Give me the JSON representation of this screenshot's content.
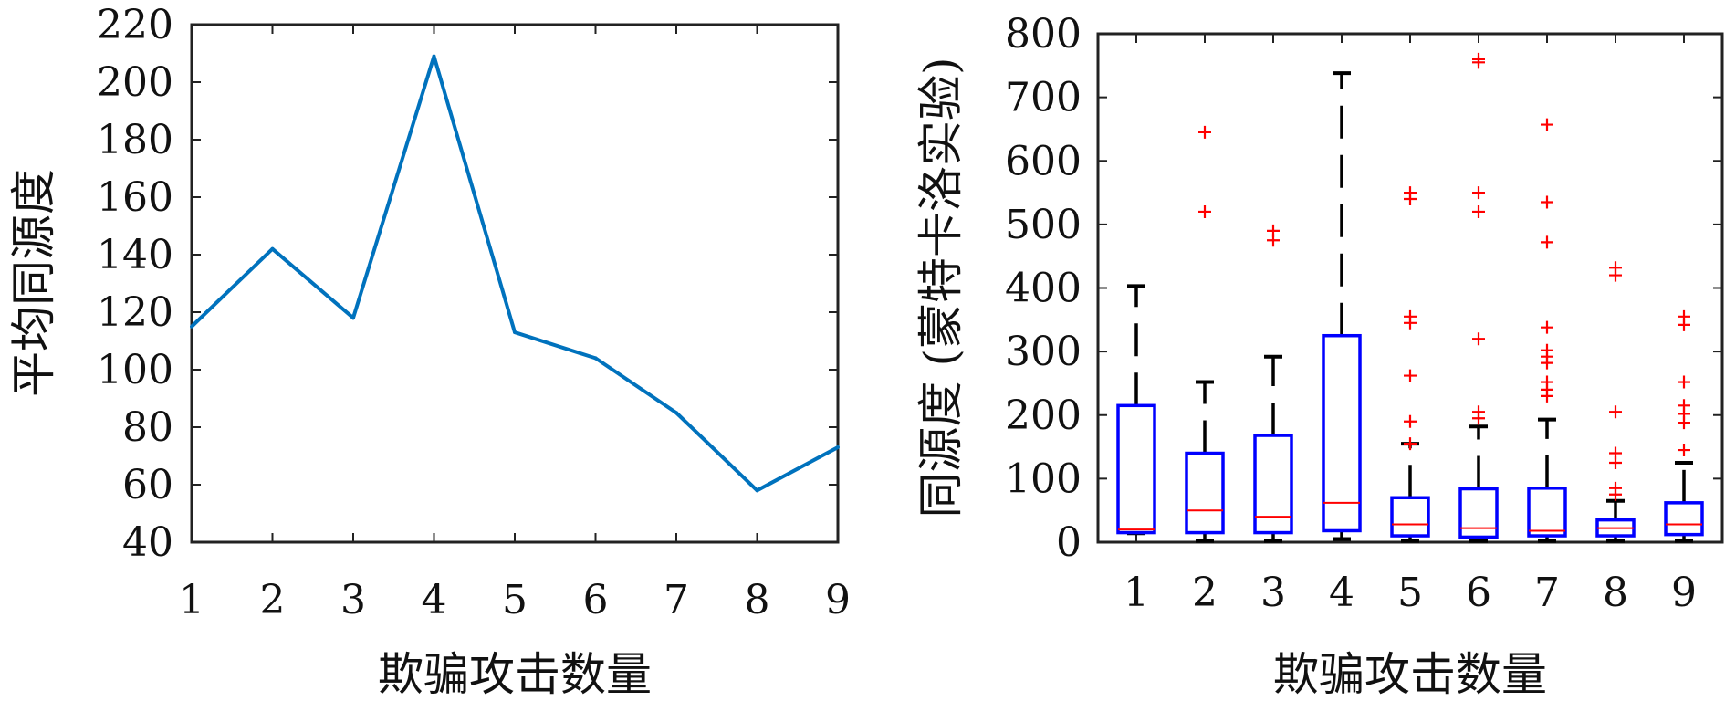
{
  "chart_data": [
    {
      "type": "line",
      "xlabel": "欺骗攻击数量",
      "ylabel": "平均同源度",
      "xlim": [
        1,
        9
      ],
      "ylim": [
        40,
        220
      ],
      "xticks": [
        1,
        2,
        3,
        4,
        5,
        6,
        7,
        8,
        9
      ],
      "yticks": [
        40,
        60,
        80,
        100,
        120,
        140,
        160,
        180,
        200,
        220
      ],
      "grid": false,
      "color": "#0072BD",
      "x": [
        1,
        2,
        3,
        4,
        5,
        6,
        7,
        8,
        9
      ],
      "y": [
        115,
        142,
        118,
        209,
        113,
        104,
        85,
        58,
        73
      ]
    },
    {
      "type": "box",
      "xlabel": "欺骗攻击数量",
      "ylabel": "同源度 (蒙特卡洛实验)",
      "ylim": [
        0,
        800
      ],
      "yticks": [
        0,
        100,
        200,
        300,
        400,
        500,
        600,
        700,
        800
      ],
      "grid": false,
      "box_color": "#0000FF",
      "median_color": "#FF0000",
      "whisker_color": "#000000",
      "outlier_color": "#FF0000",
      "categories": [
        "1",
        "2",
        "3",
        "4",
        "5",
        "6",
        "7",
        "8",
        "9"
      ],
      "boxes": [
        {
          "q1": 15,
          "median": 20,
          "q3": 215,
          "whisker_low": 14,
          "whisker_high": 403,
          "outliers": []
        },
        {
          "q1": 15,
          "median": 50,
          "q3": 140,
          "whisker_low": 2,
          "whisker_high": 252,
          "outliers": [
            520,
            645
          ]
        },
        {
          "q1": 15,
          "median": 40,
          "q3": 168,
          "whisker_low": 2,
          "whisker_high": 292,
          "outliers": [
            475,
            490
          ]
        },
        {
          "q1": 18,
          "median": 62,
          "q3": 325,
          "whisker_low": 5,
          "whisker_high": 738,
          "outliers": []
        },
        {
          "q1": 10,
          "median": 28,
          "q3": 70,
          "whisker_low": 2,
          "whisker_high": 155,
          "outliers": [
            155,
            190,
            262,
            345,
            355,
            540,
            550
          ]
        },
        {
          "q1": 8,
          "median": 22,
          "q3": 84,
          "whisker_low": 2,
          "whisker_high": 182,
          "outliers": [
            195,
            205,
            320,
            520,
            550,
            755,
            760
          ]
        },
        {
          "q1": 10,
          "median": 18,
          "q3": 85,
          "whisker_low": 2,
          "whisker_high": 193,
          "outliers": [
            230,
            240,
            252,
            282,
            292,
            302,
            338,
            472,
            535,
            657
          ]
        },
        {
          "q1": 10,
          "median": 22,
          "q3": 35,
          "whisker_low": 2,
          "whisker_high": 65,
          "outliers": [
            75,
            85,
            125,
            140,
            205,
            420,
            432
          ]
        },
        {
          "q1": 12,
          "median": 28,
          "q3": 62,
          "whisker_low": 2,
          "whisker_high": 125,
          "outliers": [
            145,
            188,
            202,
            215,
            252,
            342,
            355
          ]
        }
      ]
    }
  ]
}
